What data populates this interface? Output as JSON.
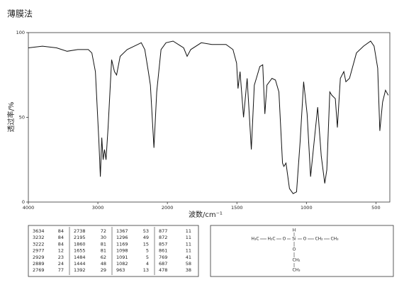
{
  "chart_data": {
    "type": "line",
    "title": "薄膜法",
    "xlabel": "波数/cm⁻¹",
    "ylabel": "透过率/%",
    "xlim": [
      4000,
      400
    ],
    "xticks": [
      4000,
      3000,
      2000,
      1500,
      1000,
      500
    ],
    "ylim": [
      0,
      100
    ],
    "yticks": [
      0,
      50,
      100
    ],
    "color": "#111",
    "x": [
      4000,
      3797,
      3594,
      3442,
      3289,
      3137,
      3086,
      3035,
      2985,
      2964,
      2944,
      2924,
      2904,
      2883,
      2853,
      2802,
      2761,
      2731,
      2680,
      2579,
      2426,
      2376,
      2325,
      2274,
      2244,
      2193,
      2153,
      2091,
      2020,
      1959,
      1883,
      1858,
      1832,
      1756,
      1680,
      1578,
      1528,
      1502,
      1492,
      1477,
      1452,
      1426,
      1396,
      1375,
      1360,
      1335,
      1314,
      1299,
      1284,
      1248,
      1223,
      1198,
      1172,
      1162,
      1147,
      1122,
      1096,
      1071,
      1045,
      1020,
      995,
      970,
      944,
      919,
      893,
      868,
      853,
      832,
      817,
      792,
      777,
      756,
      731,
      716,
      690,
      640,
      589,
      538,
      513,
      487,
      472,
      452,
      431,
      411
    ],
    "values": [
      91,
      92,
      91,
      89,
      90,
      90,
      88,
      77,
      36,
      15,
      38,
      25,
      31,
      25,
      44,
      84,
      77,
      75,
      86,
      90,
      93,
      94,
      90,
      77,
      69,
      32,
      65,
      90,
      94,
      95,
      91,
      86,
      90,
      94,
      93,
      93,
      90,
      82,
      67,
      77,
      50,
      73,
      31,
      69,
      73,
      80,
      81,
      52,
      69,
      73,
      72,
      65,
      23,
      21,
      23,
      8,
      5,
      6,
      36,
      71,
      52,
      15,
      36,
      56,
      27,
      11,
      19,
      65,
      63,
      61,
      44,
      73,
      77,
      71,
      73,
      88,
      92,
      95,
      92,
      79,
      42,
      59,
      66,
      63
    ],
    "peak_table": {
      "rows": [
        [
          3634,
          84,
          2738,
          72,
          1367,
          53,
          877,
          11
        ],
        [
          3232,
          84,
          2195,
          30,
          1296,
          49,
          872,
          11
        ],
        [
          3222,
          84,
          1860,
          81,
          1169,
          15,
          857,
          11
        ],
        [
          2977,
          12,
          1655,
          81,
          1098,
          5,
          861,
          11
        ],
        [
          2929,
          23,
          1484,
          62,
          1091,
          5,
          769,
          41
        ],
        [
          2889,
          24,
          1444,
          48,
          1082,
          4,
          687,
          58
        ],
        [
          2769,
          77,
          1392,
          29,
          963,
          13,
          478,
          38
        ]
      ]
    },
    "structure": {
      "atoms": [
        "H₃C",
        "H₂C",
        "O",
        "Si",
        "O",
        "CH₂",
        "CH₃",
        "H",
        "O",
        "CH₂",
        "CH₃"
      ]
    }
  }
}
